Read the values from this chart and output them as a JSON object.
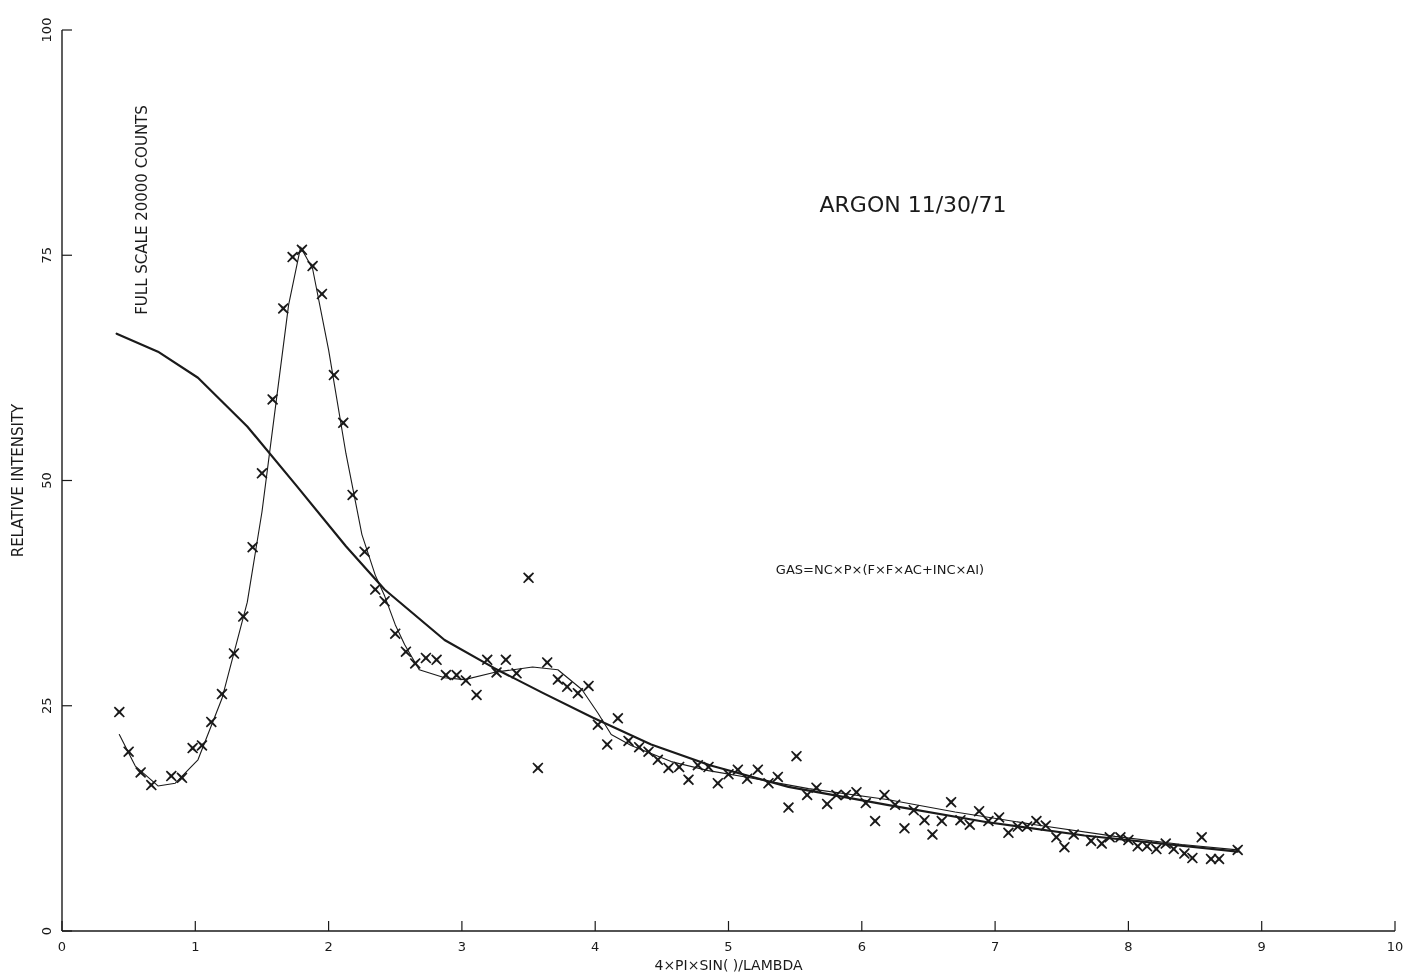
{
  "chart_data": {
    "type": "scatter",
    "title": "ARGON 11/30/71",
    "xlabel": "4×PI×SIN( )/LAMBDA",
    "ylabel": "RELATIVE INTENSITY",
    "annotations": [
      "FULL SCALE 20000 COUNTS",
      "GAS=NC×P×(F×F×AC+INC×AI)"
    ],
    "xlim": [
      0,
      10
    ],
    "ylim": [
      0,
      100
    ],
    "xticks": [
      0,
      1,
      2,
      3,
      4,
      5,
      6,
      7,
      8,
      9,
      10
    ],
    "yticks": [
      0,
      25,
      50,
      75,
      100
    ],
    "grid": false,
    "series": [
      {
        "color": "#1a1a1a",
        "marker": "cross",
        "x": [
          0.43,
          0.5,
          0.59,
          0.67,
          0.82,
          0.9,
          0.98,
          1.05,
          1.12,
          1.2,
          1.29,
          1.36,
          1.43,
          1.5,
          1.58,
          1.66,
          1.73,
          1.8,
          1.88,
          1.95,
          2.04,
          2.11,
          2.18,
          2.27,
          2.35,
          2.42,
          2.5,
          2.58,
          2.65,
          2.73,
          2.81,
          2.88,
          2.96,
          3.03,
          3.11,
          3.19,
          3.26,
          3.33,
          3.41,
          3.5,
          3.57,
          3.64,
          3.72,
          3.79,
          3.87,
          3.95,
          4.02,
          4.09,
          4.17,
          4.25,
          4.33,
          4.4,
          4.47,
          4.55,
          4.63,
          4.7,
          4.77,
          4.85,
          4.92,
          5.0,
          5.07,
          5.14,
          5.22,
          5.3,
          5.37,
          5.45,
          5.51,
          5.59,
          5.66,
          5.74,
          5.81,
          5.88,
          5.96,
          6.03,
          6.1,
          6.17,
          6.25,
          6.32,
          6.39,
          6.47,
          6.53,
          6.6,
          6.67,
          6.74,
          6.81,
          6.88,
          6.95,
          7.03,
          7.1,
          7.17,
          7.24,
          7.31,
          7.38,
          7.46,
          7.52,
          7.59,
          7.72,
          7.8,
          7.86,
          7.94,
          8.0,
          8.07,
          8.14,
          8.21,
          8.28,
          8.34,
          8.42,
          8.48,
          8.55,
          8.62,
          8.68,
          8.82
        ],
        "values": [
          24.3,
          19.9,
          17.6,
          16.2,
          17.2,
          17.0,
          20.3,
          20.6,
          23.2,
          26.3,
          30.8,
          34.9,
          42.6,
          50.8,
          59.0,
          69.1,
          74.8,
          75.6,
          73.8,
          70.7,
          61.7,
          56.4,
          48.4,
          42.1,
          37.9,
          36.6,
          33.0,
          31.0,
          29.7,
          30.3,
          30.1,
          28.4,
          28.4,
          27.8,
          26.2,
          30.1,
          28.7,
          30.1,
          28.6,
          39.2,
          18.1,
          29.8,
          27.9,
          27.1,
          26.4,
          27.2,
          22.9,
          20.7,
          23.6,
          21.1,
          20.4,
          19.9,
          19.0,
          18.1,
          18.2,
          16.8,
          18.4,
          18.2,
          16.4,
          17.4,
          17.9,
          16.9,
          17.9,
          16.4,
          17.1,
          13.7,
          19.4,
          15.1,
          15.9,
          14.1,
          15.1,
          15.1,
          15.4,
          14.2,
          12.2,
          15.1,
          14.0,
          11.4,
          13.4,
          12.3,
          10.7,
          12.2,
          14.3,
          12.3,
          11.8,
          13.3,
          12.2,
          12.6,
          10.9,
          11.6,
          11.6,
          12.2,
          11.7,
          10.4,
          9.3,
          10.7,
          10.0,
          9.7,
          10.4,
          10.4,
          10.1,
          9.4,
          9.4,
          9.1,
          9.7,
          9.1,
          8.6,
          8.1,
          10.4,
          8.0,
          8.0,
          9.0
        ]
      },
      {
        "type": "line",
        "color": "#1a1a1a",
        "marker": "none",
        "x": [
          0.43,
          0.55,
          0.72,
          0.85,
          1.02,
          1.2,
          1.39,
          1.5,
          1.6,
          1.7,
          1.79,
          1.88,
          2.0,
          2.13,
          2.25,
          2.35,
          2.42,
          2.5,
          2.57,
          2.68,
          2.87,
          3.02,
          3.24,
          3.53,
          3.72,
          3.9,
          4.02,
          4.12,
          4.27,
          4.57,
          4.85,
          5.16,
          5.6,
          6.19,
          6.7,
          7.3,
          7.9,
          8.4,
          8.82
        ],
        "values": [
          21.8,
          18.3,
          16.1,
          16.4,
          19.0,
          25.8,
          36.5,
          46.5,
          58.0,
          69.5,
          75.9,
          73.5,
          64.5,
          53.0,
          44.0,
          39.5,
          37.2,
          34.0,
          31.8,
          29.0,
          28.1,
          27.9,
          28.7,
          29.3,
          29.0,
          26.8,
          24.2,
          21.8,
          20.6,
          18.8,
          17.8,
          17.0,
          15.8,
          14.6,
          13.2,
          11.8,
          10.5,
          9.6,
          9.0
        ]
      },
      {
        "type": "line",
        "color": "#1a1a1a",
        "marker": "none",
        "x": [
          0.41,
          0.72,
          1.02,
          1.39,
          1.76,
          2.13,
          2.42,
          2.87,
          3.24,
          3.61,
          3.98,
          4.42,
          4.86,
          5.45,
          6.19,
          6.93,
          7.67,
          8.82
        ],
        "values": [
          66.3,
          64.3,
          61.4,
          56.0,
          49.4,
          42.7,
          37.9,
          32.3,
          29.2,
          26.4,
          23.7,
          20.7,
          18.4,
          16.0,
          14.0,
          12.1,
          10.6,
          8.8
        ]
      }
    ]
  }
}
